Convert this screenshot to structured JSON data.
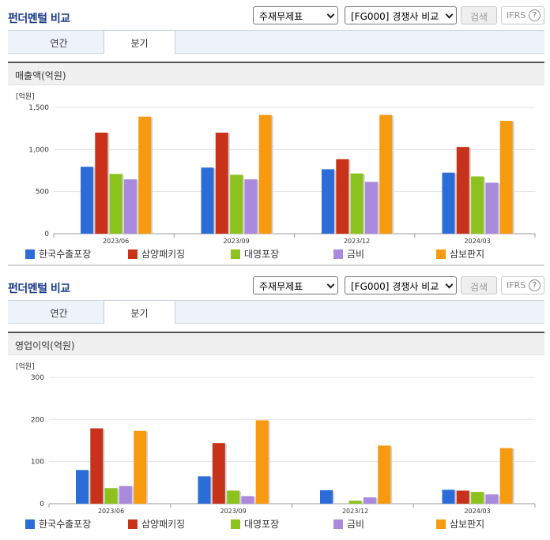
{
  "sections": [
    {
      "title": "펀더멘털 비교",
      "statement_select": "주재무제표",
      "peer_select": "[FG000] 경쟁사 비교",
      "search_label": "검색",
      "ifrs_label": "IFRS",
      "help_glyph": "?",
      "tabs": [
        {
          "label": "연간",
          "active": false
        },
        {
          "label": "분기",
          "active": true
        }
      ],
      "panel_title": "매출액(억원)"
    },
    {
      "title": "펀더멘털 비교",
      "statement_select": "주재무제표",
      "peer_select": "[FG000] 경쟁사 비교",
      "search_label": "검색",
      "ifrs_label": "IFRS",
      "help_glyph": "?",
      "tabs": [
        {
          "label": "연간",
          "active": false
        },
        {
          "label": "분기",
          "active": true
        }
      ],
      "panel_title": "영업이익(억원)"
    }
  ],
  "chart_data": [
    {
      "type": "bar",
      "unit_label": "[억원]",
      "categories": [
        "2023/06",
        "2023/09",
        "2023/12",
        "2024/03"
      ],
      "ylim": [
        0,
        1500
      ],
      "yticks": [
        0,
        500,
        1000,
        1500
      ],
      "ytick_labels": [
        "0",
        "500",
        "1,000",
        "1,500"
      ],
      "grid": true,
      "legend_position": "bottom",
      "series": [
        {
          "name": "한국수출포장",
          "color": "#2b6cd8",
          "values": [
            795,
            785,
            765,
            725
          ]
        },
        {
          "name": "삼양패키징",
          "color": "#c8321a",
          "values": [
            1200,
            1200,
            885,
            1030
          ]
        },
        {
          "name": "대영포장",
          "color": "#8cc21e",
          "values": [
            710,
            700,
            715,
            680
          ]
        },
        {
          "name": "금비",
          "color": "#a98add",
          "values": [
            645,
            645,
            615,
            605
          ]
        },
        {
          "name": "삼보판지",
          "color": "#f89a10",
          "values": [
            1390,
            1410,
            1410,
            1340
          ]
        }
      ]
    },
    {
      "type": "bar",
      "unit_label": "[억원]",
      "categories": [
        "2023/06",
        "2023/09",
        "2023/12",
        "2024/03"
      ],
      "ylim": [
        0,
        300
      ],
      "yticks": [
        0,
        100,
        200,
        300
      ],
      "ytick_labels": [
        "0",
        "100",
        "200",
        "300"
      ],
      "grid": true,
      "legend_position": "bottom",
      "series": [
        {
          "name": "한국수출포장",
          "color": "#2b6cd8",
          "values": [
            80,
            65,
            32,
            33
          ]
        },
        {
          "name": "삼양패키징",
          "color": "#c8321a",
          "values": [
            179,
            144,
            0,
            31
          ]
        },
        {
          "name": "대영포장",
          "color": "#8cc21e",
          "values": [
            37,
            31,
            7,
            28
          ]
        },
        {
          "name": "금비",
          "color": "#a98add",
          "values": [
            42,
            18,
            15,
            22
          ]
        },
        {
          "name": "삼보판지",
          "color": "#f89a10",
          "values": [
            173,
            198,
            138,
            132
          ]
        }
      ]
    }
  ]
}
